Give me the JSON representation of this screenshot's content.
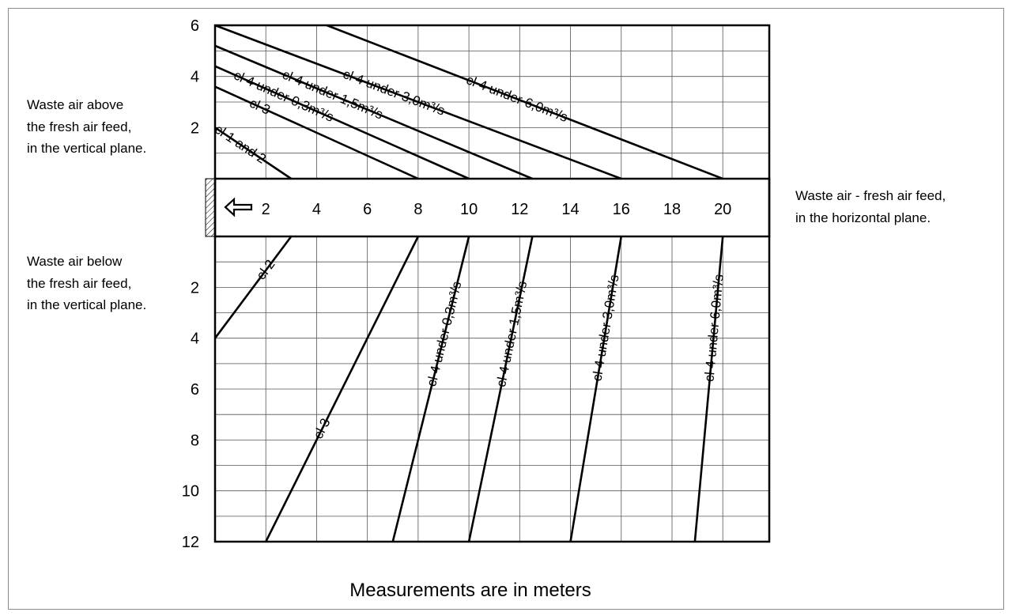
{
  "region_labels": {
    "above": [
      "Waste air above",
      "the fresh air feed,",
      "in the vertical plane."
    ],
    "below": [
      "Waste air below",
      "the fresh air feed,",
      "in the vertical plane."
    ],
    "horizontal": [
      "Waste air - fresh air feed,",
      "in the horizontal plane."
    ]
  },
  "footer": "Measurements are in meters",
  "chart_data": {
    "type": "line",
    "horizontal_ticks": [
      "2",
      "4",
      "6",
      "8",
      "10",
      "12",
      "14",
      "16",
      "18",
      "20"
    ],
    "upper_ticks": [
      "6",
      "4",
      "2"
    ],
    "lower_ticks": [
      "2",
      "4",
      "6",
      "8",
      "10",
      "12"
    ],
    "upper_series": [
      {
        "name": "cl 1 and 2",
        "label": "cl 1 and 2",
        "start": {
          "h": 0,
          "v": 2
        },
        "end": {
          "h": 3,
          "v": 0
        }
      },
      {
        "name": "cl 3",
        "label": "cl 3",
        "start": {
          "h": 0,
          "v": 3.6
        },
        "end": {
          "h": 8,
          "v": 0
        }
      },
      {
        "name": "cl 4 under 0,3m³/s",
        "label": "cl 4 under 0,3m³/s",
        "start": {
          "h": 0,
          "v": 4.4
        },
        "end": {
          "h": 10,
          "v": 0
        }
      },
      {
        "name": "cl 4 under 1,5m³/s",
        "label": "cl 4 under 1,5m³/s",
        "start": {
          "h": 0,
          "v": 5.2
        },
        "end": {
          "h": 12.5,
          "v": 0
        }
      },
      {
        "name": "cl 4 under 3,0m³/s",
        "label": "cl 4 under 3,0m³/s",
        "start": {
          "h": 0,
          "v": 6
        },
        "end": {
          "h": 16,
          "v": 0
        }
      },
      {
        "name": "cl 4 under 6,0m³/s",
        "label": "cl 4 under 6,0m³/s",
        "start": {
          "h": 4.4,
          "v": 6
        },
        "end": {
          "h": 20,
          "v": 0
        }
      }
    ],
    "lower_series": [
      {
        "name": "cl 2",
        "label": "cl 2",
        "start": {
          "h": 3,
          "v": 0
        },
        "end": {
          "h": 0,
          "v": 4
        }
      },
      {
        "name": "cl 3",
        "label": "cl 3",
        "start": {
          "h": 8,
          "v": 0
        },
        "end": {
          "h": 2,
          "v": 12
        }
      },
      {
        "name": "cl 4 under 0,3m³/s",
        "label": "cl 4 under 0,3m³/s",
        "start": {
          "h": 10,
          "v": 0
        },
        "end": {
          "h": 7,
          "v": 12
        }
      },
      {
        "name": "cl 4 under 1,5m³/s",
        "label": "cl 4 under 1,5m³/s",
        "start": {
          "h": 12.5,
          "v": 0
        },
        "end": {
          "h": 10,
          "v": 12
        }
      },
      {
        "name": "cl 4 under 3,0m³/s",
        "label": "cl 4 under 3,0m³/s",
        "start": {
          "h": 16,
          "v": 0
        },
        "end": {
          "h": 14,
          "v": 12
        }
      },
      {
        "name": "cl 4 under 6,0m³/s",
        "label": "cl 4 under 6,0m³/s",
        "start": {
          "h": 20,
          "v": 0
        },
        "end": {
          "h": 18.9,
          "v": 12
        }
      }
    ]
  }
}
